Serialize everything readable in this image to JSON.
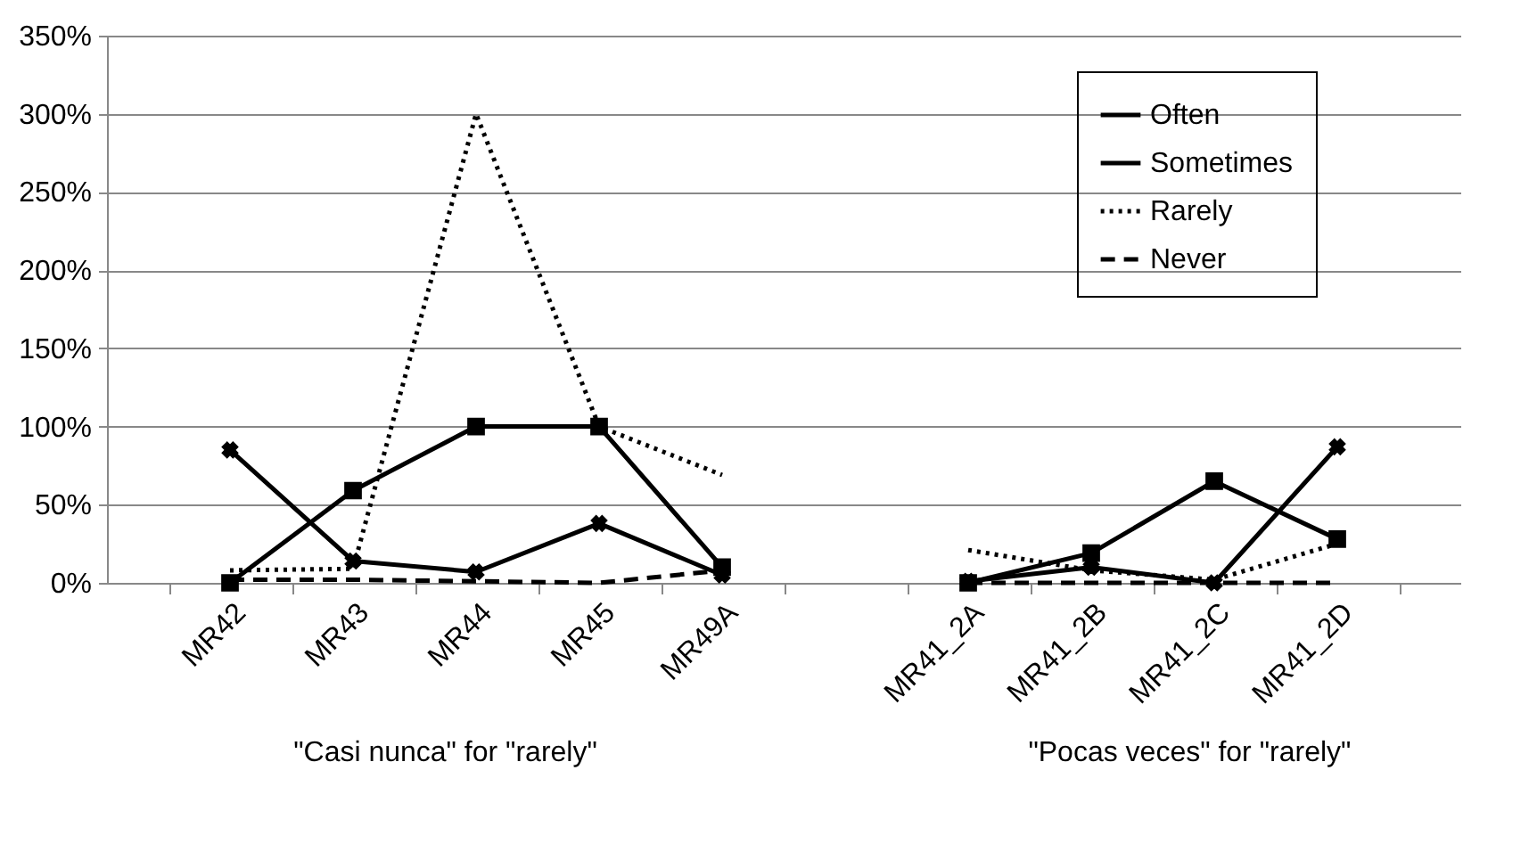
{
  "chart_data": {
    "type": "line",
    "categories": [
      "MR42",
      "MR43",
      "MR44",
      "MR45",
      "MR49A",
      null,
      "MR41_2A",
      "MR41_2B",
      "MR41_2C",
      "MR41_2D"
    ],
    "series": [
      {
        "name": "Often",
        "color": "#000000",
        "marker": "square",
        "line_style": "solid",
        "values": [
          0,
          59,
          100,
          100,
          10,
          null,
          0,
          19,
          65,
          28
        ]
      },
      {
        "name": "Sometimes",
        "color": "#000000",
        "marker": "cross",
        "line_style": "solid",
        "values": [
          85,
          14,
          7,
          38,
          5,
          null,
          1,
          10,
          0,
          87
        ]
      },
      {
        "name": "Rarely",
        "color": "#000000",
        "marker": "none",
        "line_style": "dotted",
        "values": [
          8,
          9,
          300,
          100,
          69,
          null,
          21,
          8,
          2,
          25
        ]
      },
      {
        "name": "Never",
        "color": "#000000",
        "marker": "none",
        "line_style": "dashed",
        "values": [
          2,
          2,
          1,
          0,
          8,
          null,
          0,
          0,
          0,
          0
        ]
      }
    ],
    "ylim": [
      0,
      350
    ],
    "yticks": [
      {
        "value": 0,
        "label": "0%"
      },
      {
        "value": 50,
        "label": "50%"
      },
      {
        "value": 100,
        "label": "100%"
      },
      {
        "value": 150,
        "label": "150%"
      },
      {
        "value": 200,
        "label": "200%"
      },
      {
        "value": 250,
        "label": "250%"
      },
      {
        "value": 300,
        "label": "300%"
      },
      {
        "value": 350,
        "label": "350%"
      }
    ],
    "grid": "y",
    "legend": "top right",
    "annotations": [
      "\"Casi nunca\" for \"rarely\"",
      "\"Pocas veces\" for \"rarely\""
    ]
  }
}
